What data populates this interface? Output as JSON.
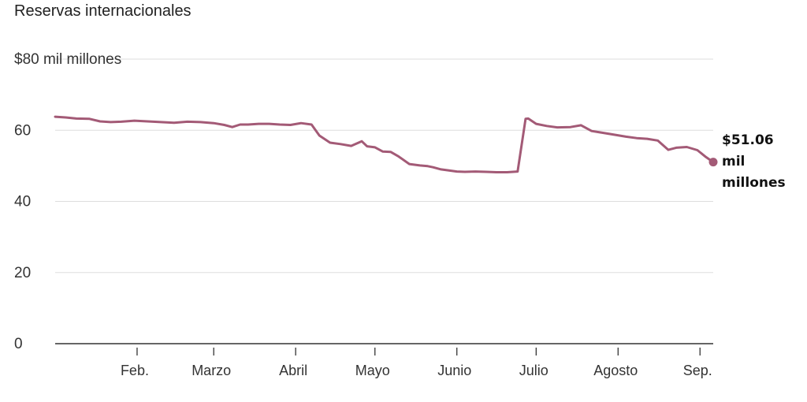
{
  "chart_data": {
    "type": "line",
    "title": "Reservas internacionales",
    "ylabel": "",
    "xlabel": "",
    "ylim": [
      0,
      80
    ],
    "yticks": [
      0,
      20,
      40,
      60,
      80
    ],
    "ytick_labels": [
      "0",
      "20",
      "40",
      "60",
      "$80 mil millones"
    ],
    "xlim": [
      "2024-01-01",
      "2024-09-06"
    ],
    "xticks": [
      {
        "date": "2024-02-01",
        "label": "Feb."
      },
      {
        "date": "2024-03-01",
        "label": "Marzo"
      },
      {
        "date": "2024-04-01",
        "label": "Abril"
      },
      {
        "date": "2024-05-01",
        "label": "Mayo"
      },
      {
        "date": "2024-06-01",
        "label": "Junio"
      },
      {
        "date": "2024-07-01",
        "label": "Julio"
      },
      {
        "date": "2024-08-01",
        "label": "Agosto"
      },
      {
        "date": "2024-09-01",
        "label": "Sep."
      }
    ],
    "grid": true,
    "colors": {
      "series": "#a35a76",
      "grid": "#dddddd",
      "axis": "#333333"
    },
    "series": [
      {
        "x": [
          "2024-01-01",
          "2024-01-05",
          "2024-01-09",
          "2024-01-14",
          "2024-01-18",
          "2024-01-22",
          "2024-01-26",
          "2024-01-31",
          "2024-02-05",
          "2024-02-10",
          "2024-02-15",
          "2024-02-20",
          "2024-02-25",
          "2024-03-01",
          "2024-03-05",
          "2024-03-08",
          "2024-03-11",
          "2024-03-14",
          "2024-03-18",
          "2024-03-22",
          "2024-03-26",
          "2024-03-30",
          "2024-04-03",
          "2024-04-07",
          "2024-04-10",
          "2024-04-14",
          "2024-04-18",
          "2024-04-22",
          "2024-04-26",
          "2024-04-28",
          "2024-05-01",
          "2024-05-04",
          "2024-05-07",
          "2024-05-10",
          "2024-05-14",
          "2024-05-18",
          "2024-05-21",
          "2024-05-23",
          "2024-05-26",
          "2024-05-29",
          "2024-06-01",
          "2024-06-04",
          "2024-06-08",
          "2024-06-12",
          "2024-06-16",
          "2024-06-20",
          "2024-06-24",
          "2024-06-27",
          "2024-06-28",
          "2024-07-01",
          "2024-07-05",
          "2024-07-09",
          "2024-07-14",
          "2024-07-18",
          "2024-07-22",
          "2024-07-26",
          "2024-07-31",
          "2024-08-04",
          "2024-08-08",
          "2024-08-12",
          "2024-08-16",
          "2024-08-20",
          "2024-08-23",
          "2024-08-27",
          "2024-08-31",
          "2024-09-03",
          "2024-09-06"
        ],
        "values": [
          63.8,
          63.6,
          63.3,
          63.2,
          62.5,
          62.3,
          62.4,
          62.7,
          62.5,
          62.3,
          62.1,
          62.4,
          62.3,
          62.0,
          61.5,
          60.9,
          61.6,
          61.6,
          61.8,
          61.8,
          61.6,
          61.5,
          62.0,
          61.6,
          58.5,
          56.5,
          56.1,
          55.6,
          56.9,
          55.5,
          55.2,
          54.0,
          53.9,
          52.6,
          50.5,
          50.1,
          49.9,
          49.6,
          49.0,
          48.7,
          48.4,
          48.3,
          48.4,
          48.3,
          48.2,
          48.2,
          48.4,
          63.2,
          63.3,
          61.8,
          61.2,
          60.8,
          60.9,
          61.4,
          59.8,
          59.3,
          58.7,
          58.2,
          57.8,
          57.6,
          57.1,
          54.5,
          55.1,
          55.3,
          54.4,
          52.6,
          51.06
        ]
      }
    ],
    "end_label": {
      "value": "$51.06",
      "line2": "mil",
      "line3": "millones"
    }
  }
}
